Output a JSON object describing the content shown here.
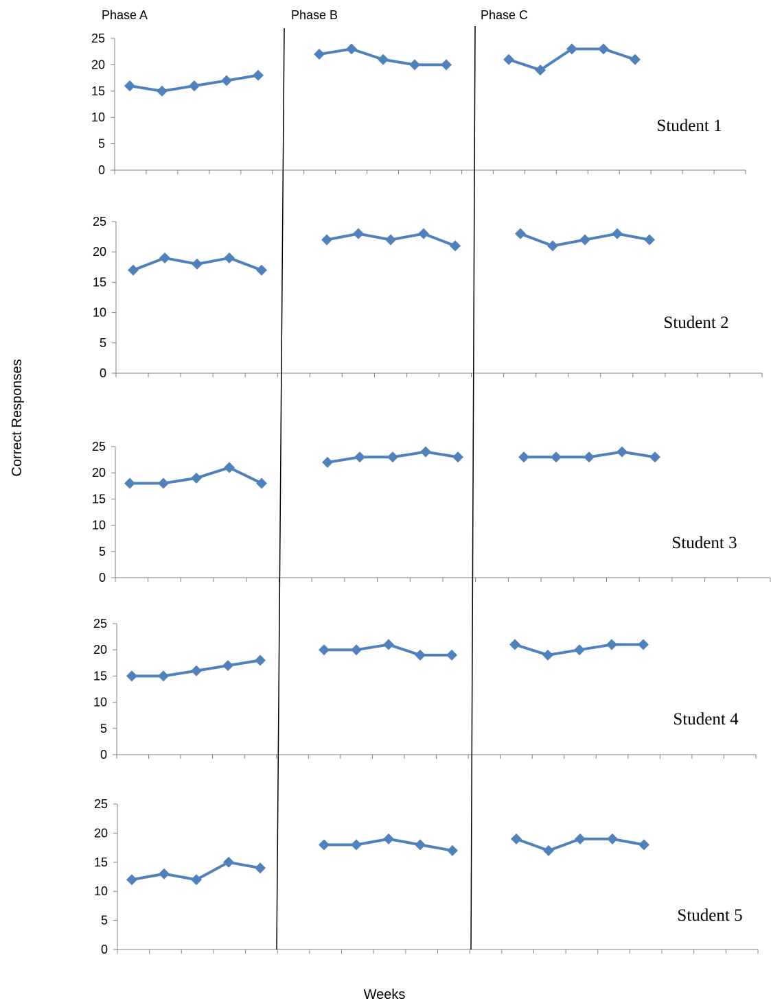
{
  "phase_labels": [
    "Phase A",
    "Phase B",
    "Phase C"
  ],
  "ylabel": "Correct Responses",
  "xlabel": "Weeks",
  "colors": {
    "series": "#4F81BD",
    "axis": "#808080",
    "divider": "#000000",
    "text": "#000000"
  },
  "chart_data": [
    {
      "type": "line",
      "label": "Student 1",
      "ylim": [
        0,
        25
      ],
      "yticks": [
        0,
        5,
        10,
        15,
        20,
        25
      ],
      "x_slots": 20,
      "segments": [
        {
          "phase": "Phase A",
          "x": [
            1,
            2,
            3,
            4,
            5
          ],
          "values": [
            16,
            15,
            16,
            17,
            18
          ]
        },
        {
          "phase": "Phase B",
          "x": [
            7,
            8,
            9,
            10,
            11
          ],
          "values": [
            22,
            23,
            21,
            20,
            20
          ]
        },
        {
          "phase": "Phase C",
          "x": [
            13,
            14,
            15,
            16,
            17
          ],
          "values": [
            21,
            19,
            23,
            23,
            21
          ]
        }
      ]
    },
    {
      "type": "line",
      "label": "Student 2",
      "ylim": [
        0,
        25
      ],
      "yticks": [
        0,
        5,
        10,
        15,
        20,
        25
      ],
      "x_slots": 20,
      "segments": [
        {
          "phase": "Phase A",
          "x": [
            1,
            2,
            3,
            4,
            5
          ],
          "values": [
            17,
            19,
            18,
            19,
            17
          ]
        },
        {
          "phase": "Phase B",
          "x": [
            7,
            8,
            9,
            10,
            11
          ],
          "values": [
            22,
            23,
            22,
            23,
            21
          ]
        },
        {
          "phase": "Phase C",
          "x": [
            13,
            14,
            15,
            16,
            17
          ],
          "values": [
            23,
            21,
            22,
            23,
            22
          ]
        }
      ]
    },
    {
      "type": "line",
      "label": "Student 3",
      "ylim": [
        0,
        25
      ],
      "yticks": [
        0,
        5,
        10,
        15,
        20,
        25
      ],
      "x_slots": 20,
      "segments": [
        {
          "phase": "Phase A",
          "x": [
            1,
            2,
            3,
            4,
            5
          ],
          "values": [
            18,
            18,
            19,
            21,
            18
          ]
        },
        {
          "phase": "Phase B",
          "x": [
            7,
            8,
            9,
            10,
            11
          ],
          "values": [
            22,
            23,
            23,
            24,
            23
          ]
        },
        {
          "phase": "Phase C",
          "x": [
            13,
            14,
            15,
            16,
            17
          ],
          "values": [
            23,
            23,
            23,
            24,
            23
          ]
        }
      ]
    },
    {
      "type": "line",
      "label": "Student 4",
      "ylim": [
        0,
        25
      ],
      "yticks": [
        0,
        5,
        10,
        15,
        20,
        25
      ],
      "x_slots": 20,
      "segments": [
        {
          "phase": "Phase A",
          "x": [
            1,
            2,
            3,
            4,
            5
          ],
          "values": [
            15,
            15,
            16,
            17,
            18
          ]
        },
        {
          "phase": "Phase B",
          "x": [
            7,
            8,
            9,
            10,
            11
          ],
          "values": [
            20,
            20,
            21,
            19,
            19
          ]
        },
        {
          "phase": "Phase C",
          "x": [
            13,
            14,
            15,
            16,
            17
          ],
          "values": [
            21,
            19,
            20,
            21,
            21
          ]
        }
      ]
    },
    {
      "type": "line",
      "label": "Student 5",
      "ylim": [
        0,
        25
      ],
      "yticks": [
        0,
        5,
        10,
        15,
        20,
        25
      ],
      "x_slots": 20,
      "segments": [
        {
          "phase": "Phase A",
          "x": [
            1,
            2,
            3,
            4,
            5
          ],
          "values": [
            12,
            13,
            12,
            15,
            14
          ]
        },
        {
          "phase": "Phase B",
          "x": [
            7,
            8,
            9,
            10,
            11
          ],
          "values": [
            18,
            18,
            19,
            18,
            17
          ]
        },
        {
          "phase": "Phase C",
          "x": [
            13,
            14,
            15,
            16,
            17
          ],
          "values": [
            19,
            17,
            19,
            19,
            18
          ]
        }
      ]
    }
  ]
}
